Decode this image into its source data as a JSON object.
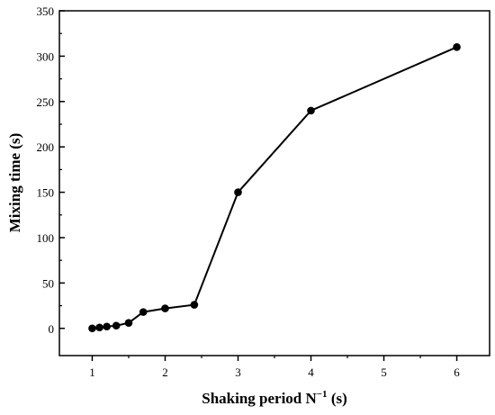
{
  "chart_data": {
    "type": "line",
    "xlabel": "Shaking period N",
    "xlabel_sup": "−1",
    "xlabel_unit": " (s)",
    "ylabel": "Mixing time (s)",
    "xlim": [
      0.55,
      6.45
    ],
    "ylim": [
      -30,
      350
    ],
    "x_ticks": [
      1,
      2,
      3,
      4,
      5,
      6
    ],
    "y_ticks": [
      0,
      50,
      100,
      150,
      200,
      250,
      300,
      350
    ],
    "grid": false,
    "legend": "none",
    "line_color": "#000000",
    "series": [
      {
        "x": [
          1.0,
          1.1,
          1.2,
          1.33,
          1.5,
          1.7,
          2.0,
          2.4,
          3.0,
          4.0,
          6.0
        ],
        "y": [
          0,
          1,
          2,
          3,
          6,
          18,
          22,
          26,
          150,
          240,
          310
        ]
      }
    ]
  }
}
